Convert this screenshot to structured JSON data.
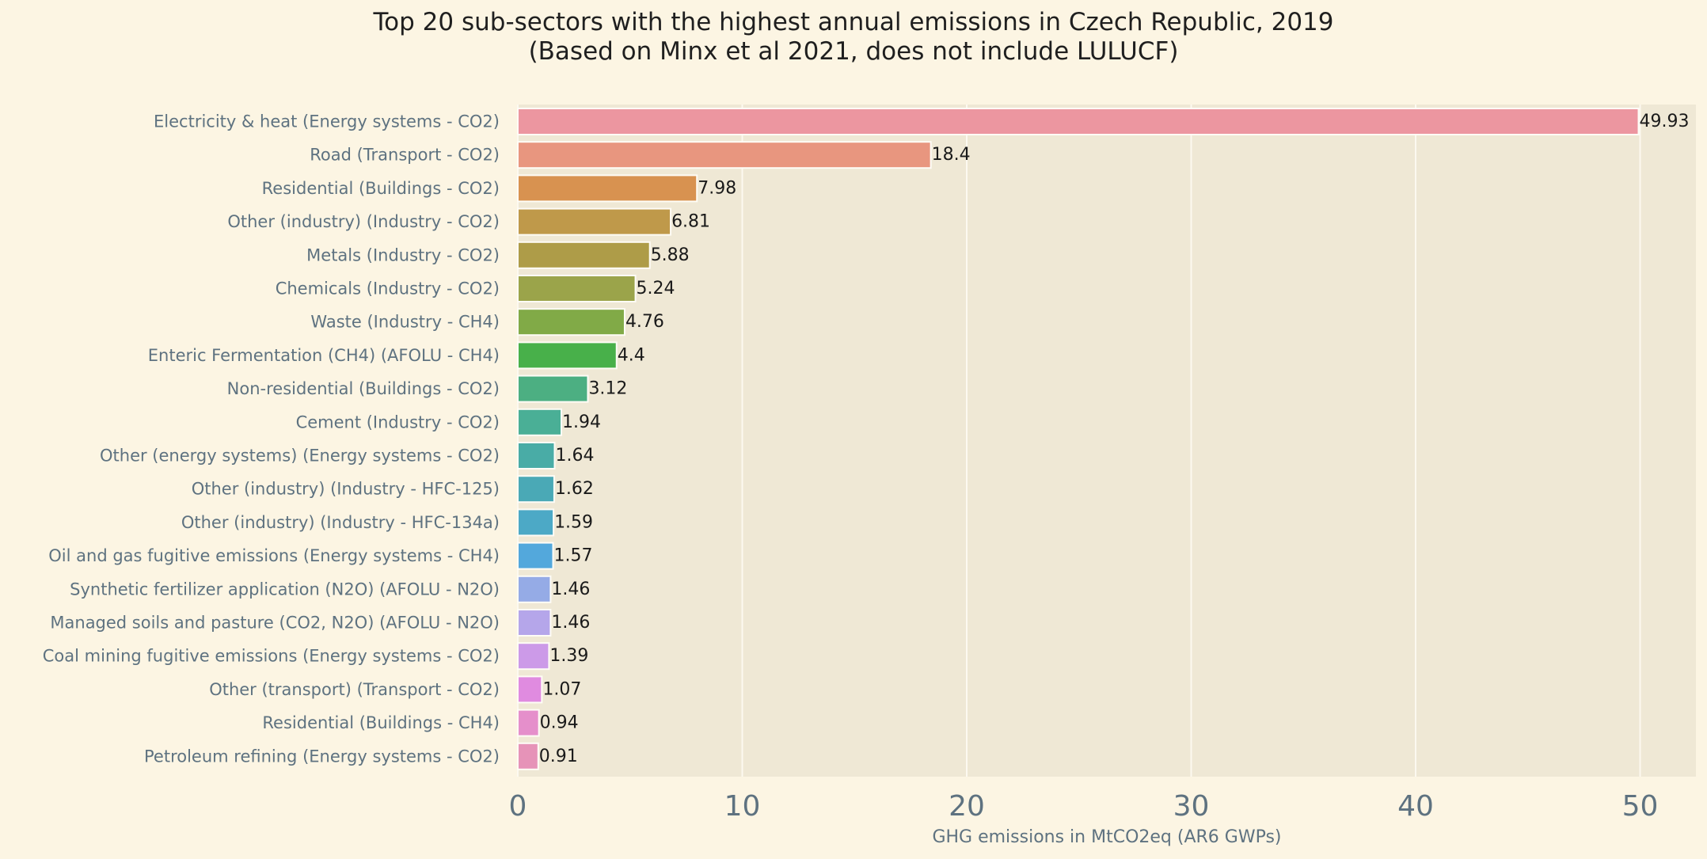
{
  "chart_data": {
    "type": "bar",
    "orientation": "horizontal",
    "title": "Top 20 sub-sectors with the highest annual emissions in Czech Republic, 2019",
    "subtitle": "(Based on Minx et al 2021, does not include LULUCF)",
    "xlabel": "GHG emissions in MtCO2eq (AR6 GWPs)",
    "ylabel": "",
    "xlim": [
      0,
      52.5
    ],
    "xticks": [
      0,
      10,
      20,
      30,
      40,
      50
    ],
    "grid": true,
    "categories": [
      "Electricity & heat (Energy systems - CO2)",
      "Road (Transport - CO2)",
      "Residential (Buildings - CO2)",
      "Other (industry) (Industry - CO2)",
      "Metals (Industry - CO2)",
      "Chemicals (Industry - CO2)",
      "Waste (Industry - CH4)",
      "Enteric Fermentation (CH4) (AFOLU - CH4)",
      "Non-residential (Buildings - CO2)",
      "Cement (Industry - CO2)",
      "Other (energy systems) (Energy systems - CO2)",
      "Other (industry) (Industry - HFC-125)",
      "Other (industry) (Industry - HFC-134a)",
      "Oil and gas fugitive emissions (Energy systems - CH4)",
      "Synthetic fertilizer application (N2O) (AFOLU - N2O)",
      "Managed soils and pasture (CO2, N2O) (AFOLU - N2O)",
      "Coal mining fugitive emissions (Energy systems - CO2)",
      "Other (transport) (Transport - CO2)",
      "Residential (Buildings - CH4)",
      "Petroleum refining (Energy systems - CO2)"
    ],
    "values": [
      49.93,
      18.4,
      7.98,
      6.81,
      5.88,
      5.24,
      4.76,
      4.4,
      3.12,
      1.94,
      1.64,
      1.62,
      1.59,
      1.57,
      1.46,
      1.46,
      1.39,
      1.07,
      0.94,
      0.91
    ],
    "value_labels": [
      "49.93",
      "18.4",
      "7.98",
      "6.81",
      "5.88",
      "5.24",
      "4.76",
      "4.4",
      "3.12",
      "1.94",
      "1.64",
      "1.62",
      "1.59",
      "1.57",
      "1.46",
      "1.46",
      "1.39",
      "1.07",
      "0.94",
      "0.91"
    ],
    "colors": [
      "#ec96a0",
      "#e8967f",
      "#d89250",
      "#bf994a",
      "#ae9c48",
      "#9ba44a",
      "#81aa47",
      "#48b04a",
      "#4caf82",
      "#4aaf96",
      "#49aca6",
      "#4aa9b6",
      "#4ca9c6",
      "#53a8dc",
      "#95abe6",
      "#b5a6ea",
      "#cc9ae8",
      "#e08be0",
      "#e58fcb",
      "#e693b8"
    ]
  },
  "style": {
    "page_background": "#fcf5e3",
    "plot_background": "#efe8d5",
    "grid_color": "#fcf9f0",
    "bar_edge": "#fefcf6",
    "text_muted": "#5e7280",
    "text_dark": "#1a1a1a"
  }
}
